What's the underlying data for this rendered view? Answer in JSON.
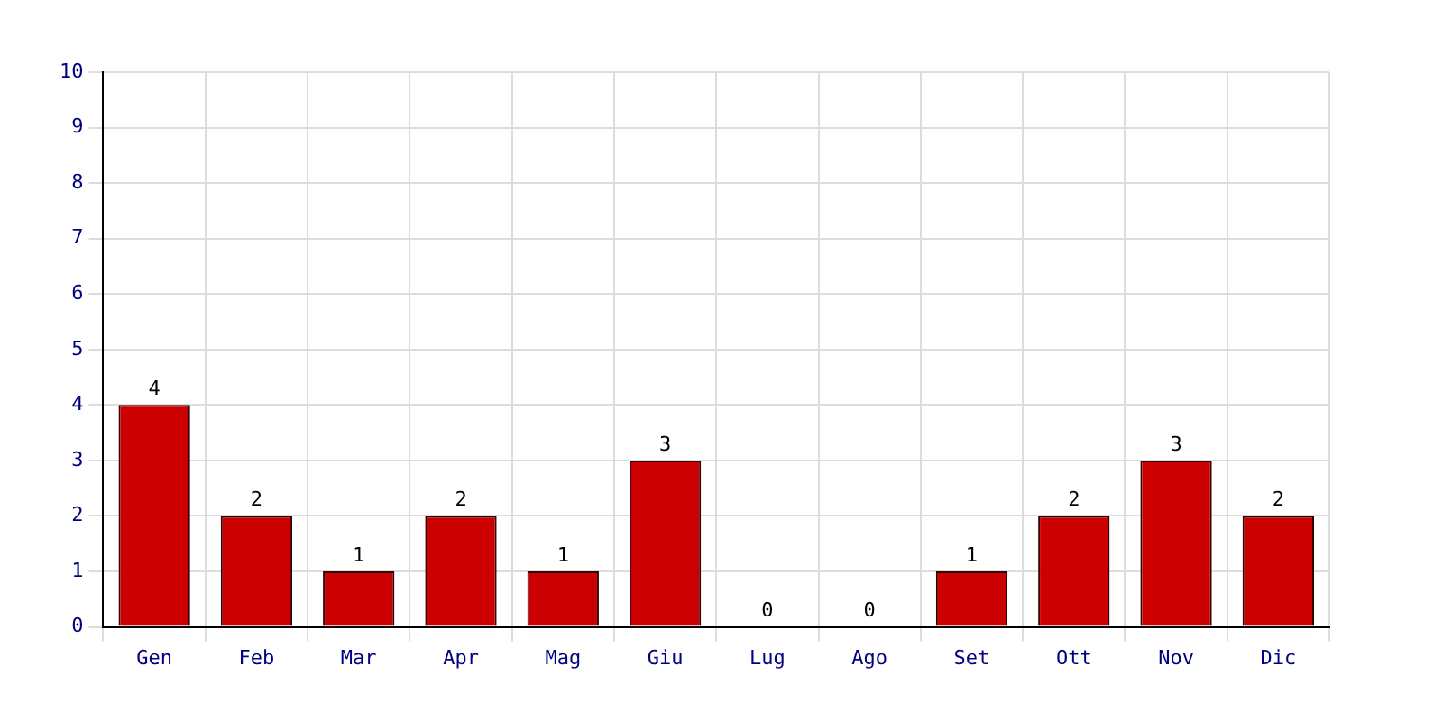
{
  "chart_data": {
    "type": "bar",
    "categories": [
      "Gen",
      "Feb",
      "Mar",
      "Apr",
      "Mag",
      "Giu",
      "Lug",
      "Ago",
      "Set",
      "Ott",
      "Nov",
      "Dic"
    ],
    "values": [
      4,
      2,
      1,
      2,
      1,
      3,
      0,
      0,
      1,
      2,
      3,
      2
    ],
    "color": "#cc0000",
    "ylim": [
      0,
      10
    ],
    "yticks": [
      0,
      1,
      2,
      3,
      4,
      5,
      6,
      7,
      8,
      9,
      10
    ],
    "grid": true,
    "legend": false,
    "data_labels": true
  }
}
